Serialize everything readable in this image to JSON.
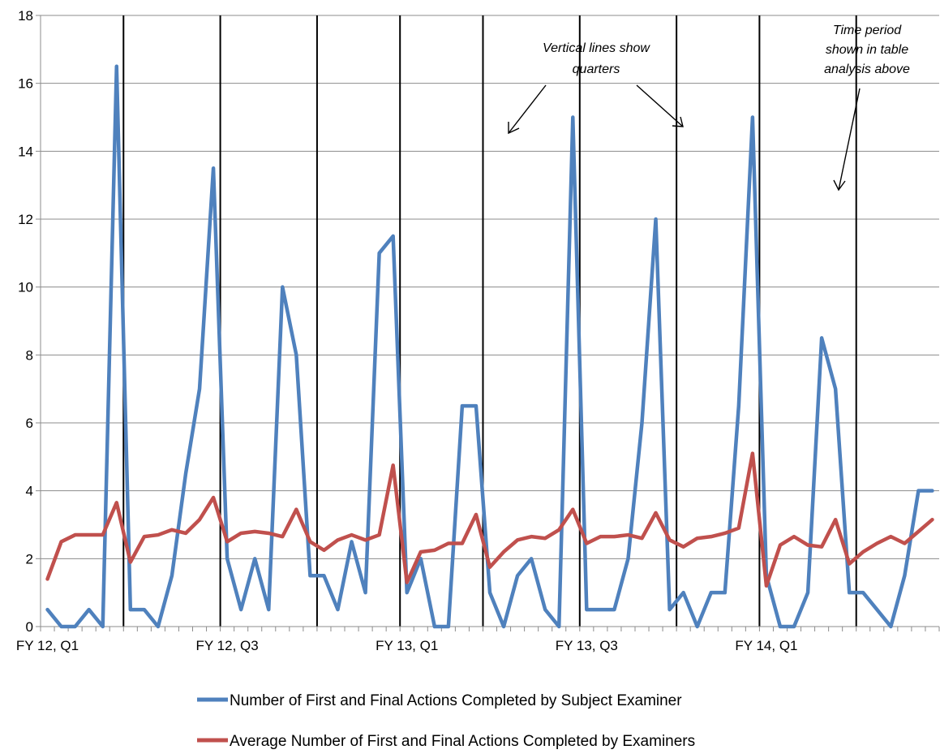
{
  "chart_data": {
    "type": "line",
    "title": "",
    "xlabel": "",
    "ylabel": "",
    "ylim": [
      0,
      18
    ],
    "yticks": [
      0,
      2,
      4,
      6,
      8,
      10,
      12,
      14,
      16,
      18
    ],
    "grid": true,
    "x_tick_labels": [
      {
        "index": 0,
        "label": "FY 12, Q1"
      },
      {
        "index": 13,
        "label": "FY 12, Q3"
      },
      {
        "index": 26,
        "label": "FY 13, Q1"
      },
      {
        "index": 39,
        "label": "FY 13, Q3"
      },
      {
        "index": 52,
        "label": "FY 14, Q1"
      }
    ],
    "quarter_lines_after_index": [
      5.5,
      12.5,
      19.5,
      25.5,
      31.5,
      38.5,
      45.5,
      51.5,
      58.5
    ],
    "series": [
      {
        "name": "Number of First and Final Actions Completed by Subject Examiner",
        "color": "#4F81BD",
        "values": [
          0.5,
          0,
          0,
          0.5,
          0,
          16.5,
          0.5,
          0.5,
          0,
          1.5,
          4.5,
          7,
          13.5,
          2,
          0.5,
          2,
          0.5,
          10,
          8,
          1.5,
          1.5,
          0.5,
          2.5,
          1,
          11,
          11.5,
          1,
          2,
          0,
          0,
          6.5,
          6.5,
          1,
          0,
          1.5,
          2,
          0.5,
          0,
          15,
          0.5,
          0.5,
          0.5,
          2,
          6,
          12,
          0.5,
          1,
          0,
          1,
          1,
          6.5,
          15,
          1.5,
          0,
          0,
          1,
          8.5,
          7,
          1,
          1,
          0.5,
          0,
          1.5,
          4,
          4
        ]
      },
      {
        "name": "Average Number of First and Final Actions Completed by Examiners",
        "color": "#C0504D",
        "values": [
          1.4,
          2.5,
          2.7,
          2.7,
          2.7,
          3.65,
          1.9,
          2.65,
          2.7,
          2.85,
          2.75,
          3.15,
          3.8,
          2.5,
          2.75,
          2.8,
          2.75,
          2.65,
          3.45,
          2.5,
          2.25,
          2.55,
          2.7,
          2.55,
          2.7,
          4.75,
          1.3,
          2.2,
          2.25,
          2.45,
          2.45,
          3.3,
          1.75,
          2.2,
          2.55,
          2.65,
          2.6,
          2.85,
          3.45,
          2.45,
          2.65,
          2.65,
          2.7,
          2.6,
          3.35,
          2.55,
          2.35,
          2.6,
          2.65,
          2.75,
          2.9,
          5.1,
          1.2,
          2.4,
          2.65,
          2.4,
          2.35,
          3.15,
          1.85,
          2.2,
          2.45,
          2.65,
          2.45,
          2.8,
          3.15
        ]
      }
    ],
    "annotations": [
      {
        "text_lines": [
          "Vertical lines show",
          "quarters"
        ]
      },
      {
        "text_lines": [
          "Time period",
          "shown in table",
          "analysis above"
        ]
      }
    ],
    "legend_position": "bottom"
  }
}
